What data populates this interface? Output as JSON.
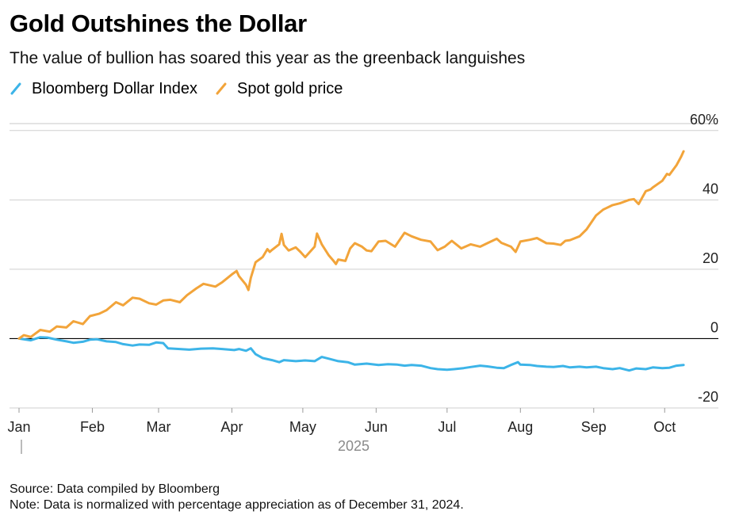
{
  "title": "Gold Outshines the Dollar",
  "subtitle": "The value of bullion has soared this year as the greenback languishes",
  "legend": [
    {
      "label": "Bloomberg Dollar Index",
      "color": "#3cb4e8"
    },
    {
      "label": "Spot gold price",
      "color": "#f2a43a"
    }
  ],
  "footer": {
    "source": "Source: Data compiled by Bloomberg",
    "note": "Note: Data is normalized with percentage appreciation as of December 31, 2024."
  },
  "chart_data": {
    "type": "line",
    "year_label": "2025",
    "x_ticks": [
      "Jan",
      "Feb",
      "Mar",
      "Apr",
      "May",
      "Jun",
      "Jul",
      "Aug",
      "Sep",
      "Oct"
    ],
    "y_ticks": [
      {
        "value": 60,
        "label": "60%"
      },
      {
        "value": 40,
        "label": "40"
      },
      {
        "value": 20,
        "label": "20"
      },
      {
        "value": 0,
        "label": "0"
      },
      {
        "value": -20,
        "label": "-20"
      }
    ],
    "ylim": [
      -20,
      62
    ],
    "xlim": [
      "2025-01-01",
      "2025-10-15"
    ],
    "grid": true,
    "series": [
      {
        "name": "Spot gold price",
        "color": "#f2a43a",
        "points": [
          [
            "2025-01-01",
            0
          ],
          [
            "2025-01-03",
            1
          ],
          [
            "2025-01-06",
            0.5
          ],
          [
            "2025-01-10",
            2.5
          ],
          [
            "2025-01-14",
            2
          ],
          [
            "2025-01-17",
            3.5
          ],
          [
            "2025-01-21",
            3.2
          ],
          [
            "2025-01-24",
            5
          ],
          [
            "2025-01-28",
            4.2
          ],
          [
            "2025-01-31",
            6.5
          ],
          [
            "2025-02-04",
            7.2
          ],
          [
            "2025-02-07",
            8.2
          ],
          [
            "2025-02-11",
            10.5
          ],
          [
            "2025-02-14",
            9.6
          ],
          [
            "2025-02-18",
            11.8
          ],
          [
            "2025-02-21",
            11.5
          ],
          [
            "2025-02-25",
            10.2
          ],
          [
            "2025-02-28",
            9.8
          ],
          [
            "2025-03-03",
            11
          ],
          [
            "2025-03-06",
            11.2
          ],
          [
            "2025-03-10",
            10.5
          ],
          [
            "2025-03-13",
            12.5
          ],
          [
            "2025-03-17",
            14.5
          ],
          [
            "2025-03-20",
            15.8
          ],
          [
            "2025-03-25",
            15
          ],
          [
            "2025-03-28",
            16.3
          ],
          [
            "2025-04-01",
            18.5
          ],
          [
            "2025-04-03",
            19.5
          ],
          [
            "2025-04-04",
            18
          ],
          [
            "2025-04-07",
            15.5
          ],
          [
            "2025-04-08",
            14
          ],
          [
            "2025-04-09",
            17.5
          ],
          [
            "2025-04-11",
            22
          ],
          [
            "2025-04-14",
            23.5
          ],
          [
            "2025-04-16",
            25.8
          ],
          [
            "2025-04-17",
            25
          ],
          [
            "2025-04-18",
            25.6
          ],
          [
            "2025-04-21",
            27.2
          ],
          [
            "2025-04-22",
            30.2
          ],
          [
            "2025-04-23",
            27
          ],
          [
            "2025-04-25",
            25.4
          ],
          [
            "2025-04-28",
            26.3
          ],
          [
            "2025-04-30",
            25
          ],
          [
            "2025-05-02",
            23.5
          ],
          [
            "2025-05-06",
            26.5
          ],
          [
            "2025-05-07",
            30.3
          ],
          [
            "2025-05-09",
            27.2
          ],
          [
            "2025-05-12",
            24
          ],
          [
            "2025-05-14",
            22.4
          ],
          [
            "2025-05-15",
            21.5
          ],
          [
            "2025-05-16",
            22.8
          ],
          [
            "2025-05-19",
            22.4
          ],
          [
            "2025-05-21",
            26
          ],
          [
            "2025-05-23",
            27.5
          ],
          [
            "2025-05-26",
            26.5
          ],
          [
            "2025-05-28",
            25.4
          ],
          [
            "2025-05-30",
            25.2
          ],
          [
            "2025-06-02",
            28
          ],
          [
            "2025-06-05",
            28.2
          ],
          [
            "2025-06-09",
            26.5
          ],
          [
            "2025-06-13",
            30.5
          ],
          [
            "2025-06-16",
            29.5
          ],
          [
            "2025-06-20",
            28.5
          ],
          [
            "2025-06-24",
            28
          ],
          [
            "2025-06-27",
            25.5
          ],
          [
            "2025-06-30",
            26.5
          ],
          [
            "2025-07-03",
            28.2
          ],
          [
            "2025-07-07",
            26
          ],
          [
            "2025-07-11",
            27.2
          ],
          [
            "2025-07-15",
            26.5
          ],
          [
            "2025-07-18",
            27.5
          ],
          [
            "2025-07-22",
            28.8
          ],
          [
            "2025-07-24",
            27.6
          ],
          [
            "2025-07-28",
            26.5
          ],
          [
            "2025-07-30",
            25
          ],
          [
            "2025-08-01",
            28
          ],
          [
            "2025-08-05",
            28.5
          ],
          [
            "2025-08-08",
            29
          ],
          [
            "2025-08-12",
            27.5
          ],
          [
            "2025-08-15",
            27.4
          ],
          [
            "2025-08-18",
            27
          ],
          [
            "2025-08-20",
            28.2
          ],
          [
            "2025-08-22",
            28.4
          ],
          [
            "2025-08-26",
            29.5
          ],
          [
            "2025-08-29",
            31.5
          ],
          [
            "2025-09-02",
            35.5
          ],
          [
            "2025-09-05",
            37.2
          ],
          [
            "2025-09-09",
            38.5
          ],
          [
            "2025-09-12",
            39
          ],
          [
            "2025-09-16",
            40
          ],
          [
            "2025-09-18",
            40.2
          ],
          [
            "2025-09-20",
            38.8
          ],
          [
            "2025-09-23",
            42.5
          ],
          [
            "2025-09-25",
            43
          ],
          [
            "2025-09-26",
            43.6
          ],
          [
            "2025-09-30",
            45.5
          ],
          [
            "2025-10-02",
            47.5
          ],
          [
            "2025-10-03",
            47.2
          ],
          [
            "2025-10-06",
            50
          ],
          [
            "2025-10-08",
            52.5
          ],
          [
            "2025-10-09",
            54
          ]
        ]
      },
      {
        "name": "Bloomberg Dollar Index",
        "color": "#3cb4e8",
        "points": [
          [
            "2025-01-01",
            0
          ],
          [
            "2025-01-06",
            -0.5
          ],
          [
            "2025-01-10",
            0.4
          ],
          [
            "2025-01-13",
            0.3
          ],
          [
            "2025-01-17",
            -0.3
          ],
          [
            "2025-01-21",
            -0.8
          ],
          [
            "2025-01-24",
            -1.2
          ],
          [
            "2025-01-28",
            -0.9
          ],
          [
            "2025-01-31",
            -0.3
          ],
          [
            "2025-02-03",
            -0.2
          ],
          [
            "2025-02-07",
            -0.8
          ],
          [
            "2025-02-11",
            -1
          ],
          [
            "2025-02-14",
            -1.6
          ],
          [
            "2025-02-18",
            -2
          ],
          [
            "2025-02-21",
            -1.7
          ],
          [
            "2025-02-25",
            -1.8
          ],
          [
            "2025-02-28",
            -1.1
          ],
          [
            "2025-03-03",
            -1.3
          ],
          [
            "2025-03-05",
            -2.8
          ],
          [
            "2025-03-10",
            -3
          ],
          [
            "2025-03-14",
            -3.2
          ],
          [
            "2025-03-19",
            -2.9
          ],
          [
            "2025-03-24",
            -2.8
          ],
          [
            "2025-03-28",
            -3
          ],
          [
            "2025-04-02",
            -3.3
          ],
          [
            "2025-04-04",
            -3
          ],
          [
            "2025-04-07",
            -3.5
          ],
          [
            "2025-04-09",
            -2.8
          ],
          [
            "2025-04-11",
            -4.5
          ],
          [
            "2025-04-14",
            -5.6
          ],
          [
            "2025-04-18",
            -6.2
          ],
          [
            "2025-04-21",
            -6.8
          ],
          [
            "2025-04-23",
            -6.2
          ],
          [
            "2025-04-28",
            -6.5
          ],
          [
            "2025-05-02",
            -6.3
          ],
          [
            "2025-05-06",
            -6.5
          ],
          [
            "2025-05-09",
            -5.3
          ],
          [
            "2025-05-12",
            -5.8
          ],
          [
            "2025-05-16",
            -6.5
          ],
          [
            "2025-05-20",
            -6.8
          ],
          [
            "2025-05-23",
            -7.5
          ],
          [
            "2025-05-28",
            -7.2
          ],
          [
            "2025-06-02",
            -7.6
          ],
          [
            "2025-06-06",
            -7.4
          ],
          [
            "2025-06-10",
            -7.5
          ],
          [
            "2025-06-13",
            -7.8
          ],
          [
            "2025-06-16",
            -7.6
          ],
          [
            "2025-06-20",
            -7.8
          ],
          [
            "2025-06-24",
            -8.5
          ],
          [
            "2025-06-27",
            -8.8
          ],
          [
            "2025-07-01",
            -9
          ],
          [
            "2025-07-04",
            -8.8
          ],
          [
            "2025-07-08",
            -8.5
          ],
          [
            "2025-07-11",
            -8.2
          ],
          [
            "2025-07-15",
            -7.8
          ],
          [
            "2025-07-18",
            -8
          ],
          [
            "2025-07-22",
            -8.4
          ],
          [
            "2025-07-25",
            -8.5
          ],
          [
            "2025-07-28",
            -7.6
          ],
          [
            "2025-07-31",
            -6.8
          ],
          [
            "2025-08-01",
            -7.5
          ],
          [
            "2025-08-05",
            -7.6
          ],
          [
            "2025-08-08",
            -7.9
          ],
          [
            "2025-08-12",
            -8.1
          ],
          [
            "2025-08-15",
            -8.2
          ],
          [
            "2025-08-19",
            -7.9
          ],
          [
            "2025-08-22",
            -8.3
          ],
          [
            "2025-08-26",
            -8.1
          ],
          [
            "2025-08-29",
            -8.3
          ],
          [
            "2025-09-02",
            -8.1
          ],
          [
            "2025-09-05",
            -8.5
          ],
          [
            "2025-09-09",
            -8.8
          ],
          [
            "2025-09-12",
            -8.5
          ],
          [
            "2025-09-16",
            -9.2
          ],
          [
            "2025-09-19",
            -8.6
          ],
          [
            "2025-09-23",
            -8.8
          ],
          [
            "2025-09-26",
            -8.3
          ],
          [
            "2025-09-30",
            -8.5
          ],
          [
            "2025-10-03",
            -8.4
          ],
          [
            "2025-10-06",
            -7.8
          ],
          [
            "2025-10-09",
            -7.6
          ]
        ]
      }
    ]
  }
}
